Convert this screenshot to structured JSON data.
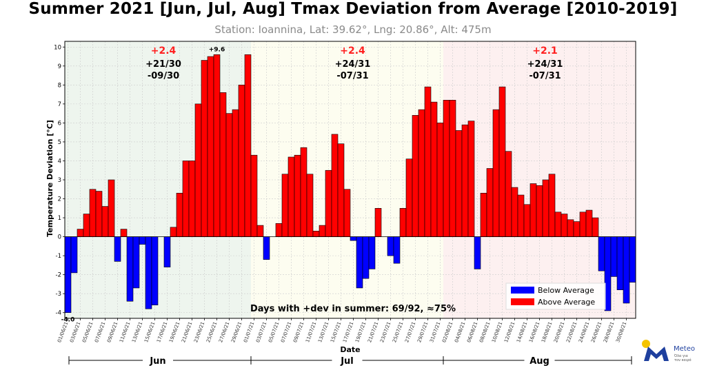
{
  "header": {
    "title": "Summer 2021 [Jun, Jul, Aug] Tmax Deviation from Average [2010-2019]",
    "subtitle": "Station: Ioannina, Lat: 39.62°, Lng: 20.86°, Alt: 475m"
  },
  "chart_data": {
    "type": "bar",
    "xlabel": "Date",
    "ylabel": "Temperature Deviation [°C]",
    "ylim": [
      -4.3,
      10.3
    ],
    "yticks": [
      -4,
      -3,
      -2,
      -1,
      0,
      1,
      2,
      3,
      4,
      5,
      6,
      7,
      8,
      9,
      10
    ],
    "grid": true,
    "legend_position": "lower-right",
    "colors": {
      "above": "#ff0000",
      "below": "#0000ff",
      "jun_bg": "#eef5ee",
      "jul_bg": "#fdfdf0",
      "aug_bg": "#fdf0f0"
    },
    "series": [
      {
        "name": "Below Average",
        "color": "#0000ff"
      },
      {
        "name": "Above Average",
        "color": "#ff0000"
      }
    ],
    "categories": [
      "01/06/21",
      "02/06/21",
      "03/06/21",
      "04/06/21",
      "05/06/21",
      "06/06/21",
      "07/06/21",
      "08/06/21",
      "09/06/21",
      "10/06/21",
      "11/06/21",
      "12/06/21",
      "13/06/21",
      "14/06/21",
      "15/06/21",
      "16/06/21",
      "17/06/21",
      "18/06/21",
      "19/06/21",
      "20/06/21",
      "21/06/21",
      "22/06/21",
      "23/06/21",
      "24/06/21",
      "25/06/21",
      "26/06/21",
      "27/06/21",
      "28/06/21",
      "29/06/21",
      "30/06/21",
      "01/07/21",
      "02/07/21",
      "03/07/21",
      "04/07/21",
      "05/07/21",
      "06/07/21",
      "07/07/21",
      "08/07/21",
      "09/07/21",
      "10/07/21",
      "11/07/21",
      "12/07/21",
      "13/07/21",
      "14/07/21",
      "15/07/21",
      "16/07/21",
      "17/07/21",
      "18/07/21",
      "19/07/21",
      "20/07/21",
      "21/07/21",
      "22/07/21",
      "23/07/21",
      "24/07/21",
      "25/07/21",
      "26/07/21",
      "27/07/21",
      "28/07/21",
      "29/07/21",
      "30/07/21",
      "31/07/21",
      "01/08/21",
      "02/08/21",
      "03/08/21",
      "04/08/21",
      "05/08/21",
      "06/08/21",
      "07/08/21",
      "08/08/21",
      "09/08/21",
      "10/08/21",
      "11/08/21",
      "12/08/21",
      "13/08/21",
      "14/08/21",
      "15/08/21",
      "16/08/21",
      "17/08/21",
      "18/08/21",
      "19/08/21",
      "20/08/21",
      "21/08/21",
      "22/08/21",
      "23/08/21",
      "24/08/21",
      "25/08/21",
      "26/08/21",
      "27/08/21",
      "28/08/21",
      "29/08/21",
      "30/08/21",
      "31/08/21"
    ],
    "tick_labels": [
      "01/06/21",
      "03/06/21",
      "05/06/21",
      "07/06/21",
      "09/06/21",
      "11/06/21",
      "13/06/21",
      "15/06/21",
      "17/06/21",
      "19/06/21",
      "21/06/21",
      "23/06/21",
      "25/06/21",
      "27/06/21",
      "29/06/21",
      "01/07/21",
      "03/07/21",
      "05/07/21",
      "07/07/21",
      "09/07/21",
      "11/07/21",
      "13/07/21",
      "15/07/21",
      "17/07/21",
      "19/07/21",
      "21/07/21",
      "23/07/21",
      "25/07/21",
      "27/07/21",
      "29/07/21",
      "31/07/21",
      "02/08/21",
      "04/08/21",
      "06/08/21",
      "08/08/21",
      "10/08/21",
      "12/08/21",
      "14/08/21",
      "16/08/21",
      "18/08/21",
      "20/08/21",
      "22/08/21",
      "24/08/21",
      "26/08/21",
      "28/08/21",
      "30/08/21"
    ],
    "values": [
      -4.0,
      -1.9,
      0.4,
      1.2,
      2.5,
      2.4,
      1.6,
      3.0,
      -1.3,
      0.4,
      -3.4,
      -2.7,
      -0.4,
      -3.8,
      -3.6,
      0.0,
      -1.6,
      0.5,
      2.3,
      4.0,
      4.0,
      7.0,
      9.3,
      9.5,
      9.6,
      7.6,
      6.5,
      6.7,
      8.0,
      9.6,
      4.3,
      0.6,
      -1.2,
      0.0,
      0.7,
      3.3,
      4.2,
      4.3,
      4.7,
      3.3,
      0.3,
      0.6,
      3.5,
      5.4,
      4.9,
      2.5,
      -0.2,
      -2.7,
      -2.2,
      -1.7,
      1.5,
      0.0,
      -1.0,
      -1.4,
      1.5,
      4.1,
      6.4,
      6.7,
      7.9,
      7.1,
      6.0,
      7.2,
      7.2,
      5.6,
      5.9,
      6.1,
      -1.7,
      2.3,
      3.6,
      6.7,
      7.9,
      4.5,
      2.6,
      2.2,
      1.7,
      2.8,
      2.7,
      3.0,
      3.3,
      1.3,
      1.2,
      0.9,
      0.8,
      1.3,
      1.4,
      1.0,
      -1.8,
      -3.9,
      -2.1,
      -2.8,
      -3.5,
      -2.4
    ],
    "months": [
      {
        "name": "Jun",
        "summary": "+2.4",
        "above": "+21/30",
        "below": "-09/30"
      },
      {
        "name": "Jul",
        "summary": "+2.4",
        "above": "+24/31",
        "below": "-07/31"
      },
      {
        "name": "Aug",
        "summary": "+2.1",
        "above": "+24/31",
        "below": "-07/31"
      }
    ],
    "annotations": {
      "max_label": "+9.6",
      "min_label": "-4.0",
      "summary": "Days with +dev in summer: 69/92, ≈75%"
    }
  },
  "logo": {
    "name": "Meteo",
    "tagline_1": "Όλα για",
    "tagline_2": "τον καιρό",
    "colors": {
      "primary": "#1e3f9e",
      "accent": "#f5c400"
    }
  }
}
